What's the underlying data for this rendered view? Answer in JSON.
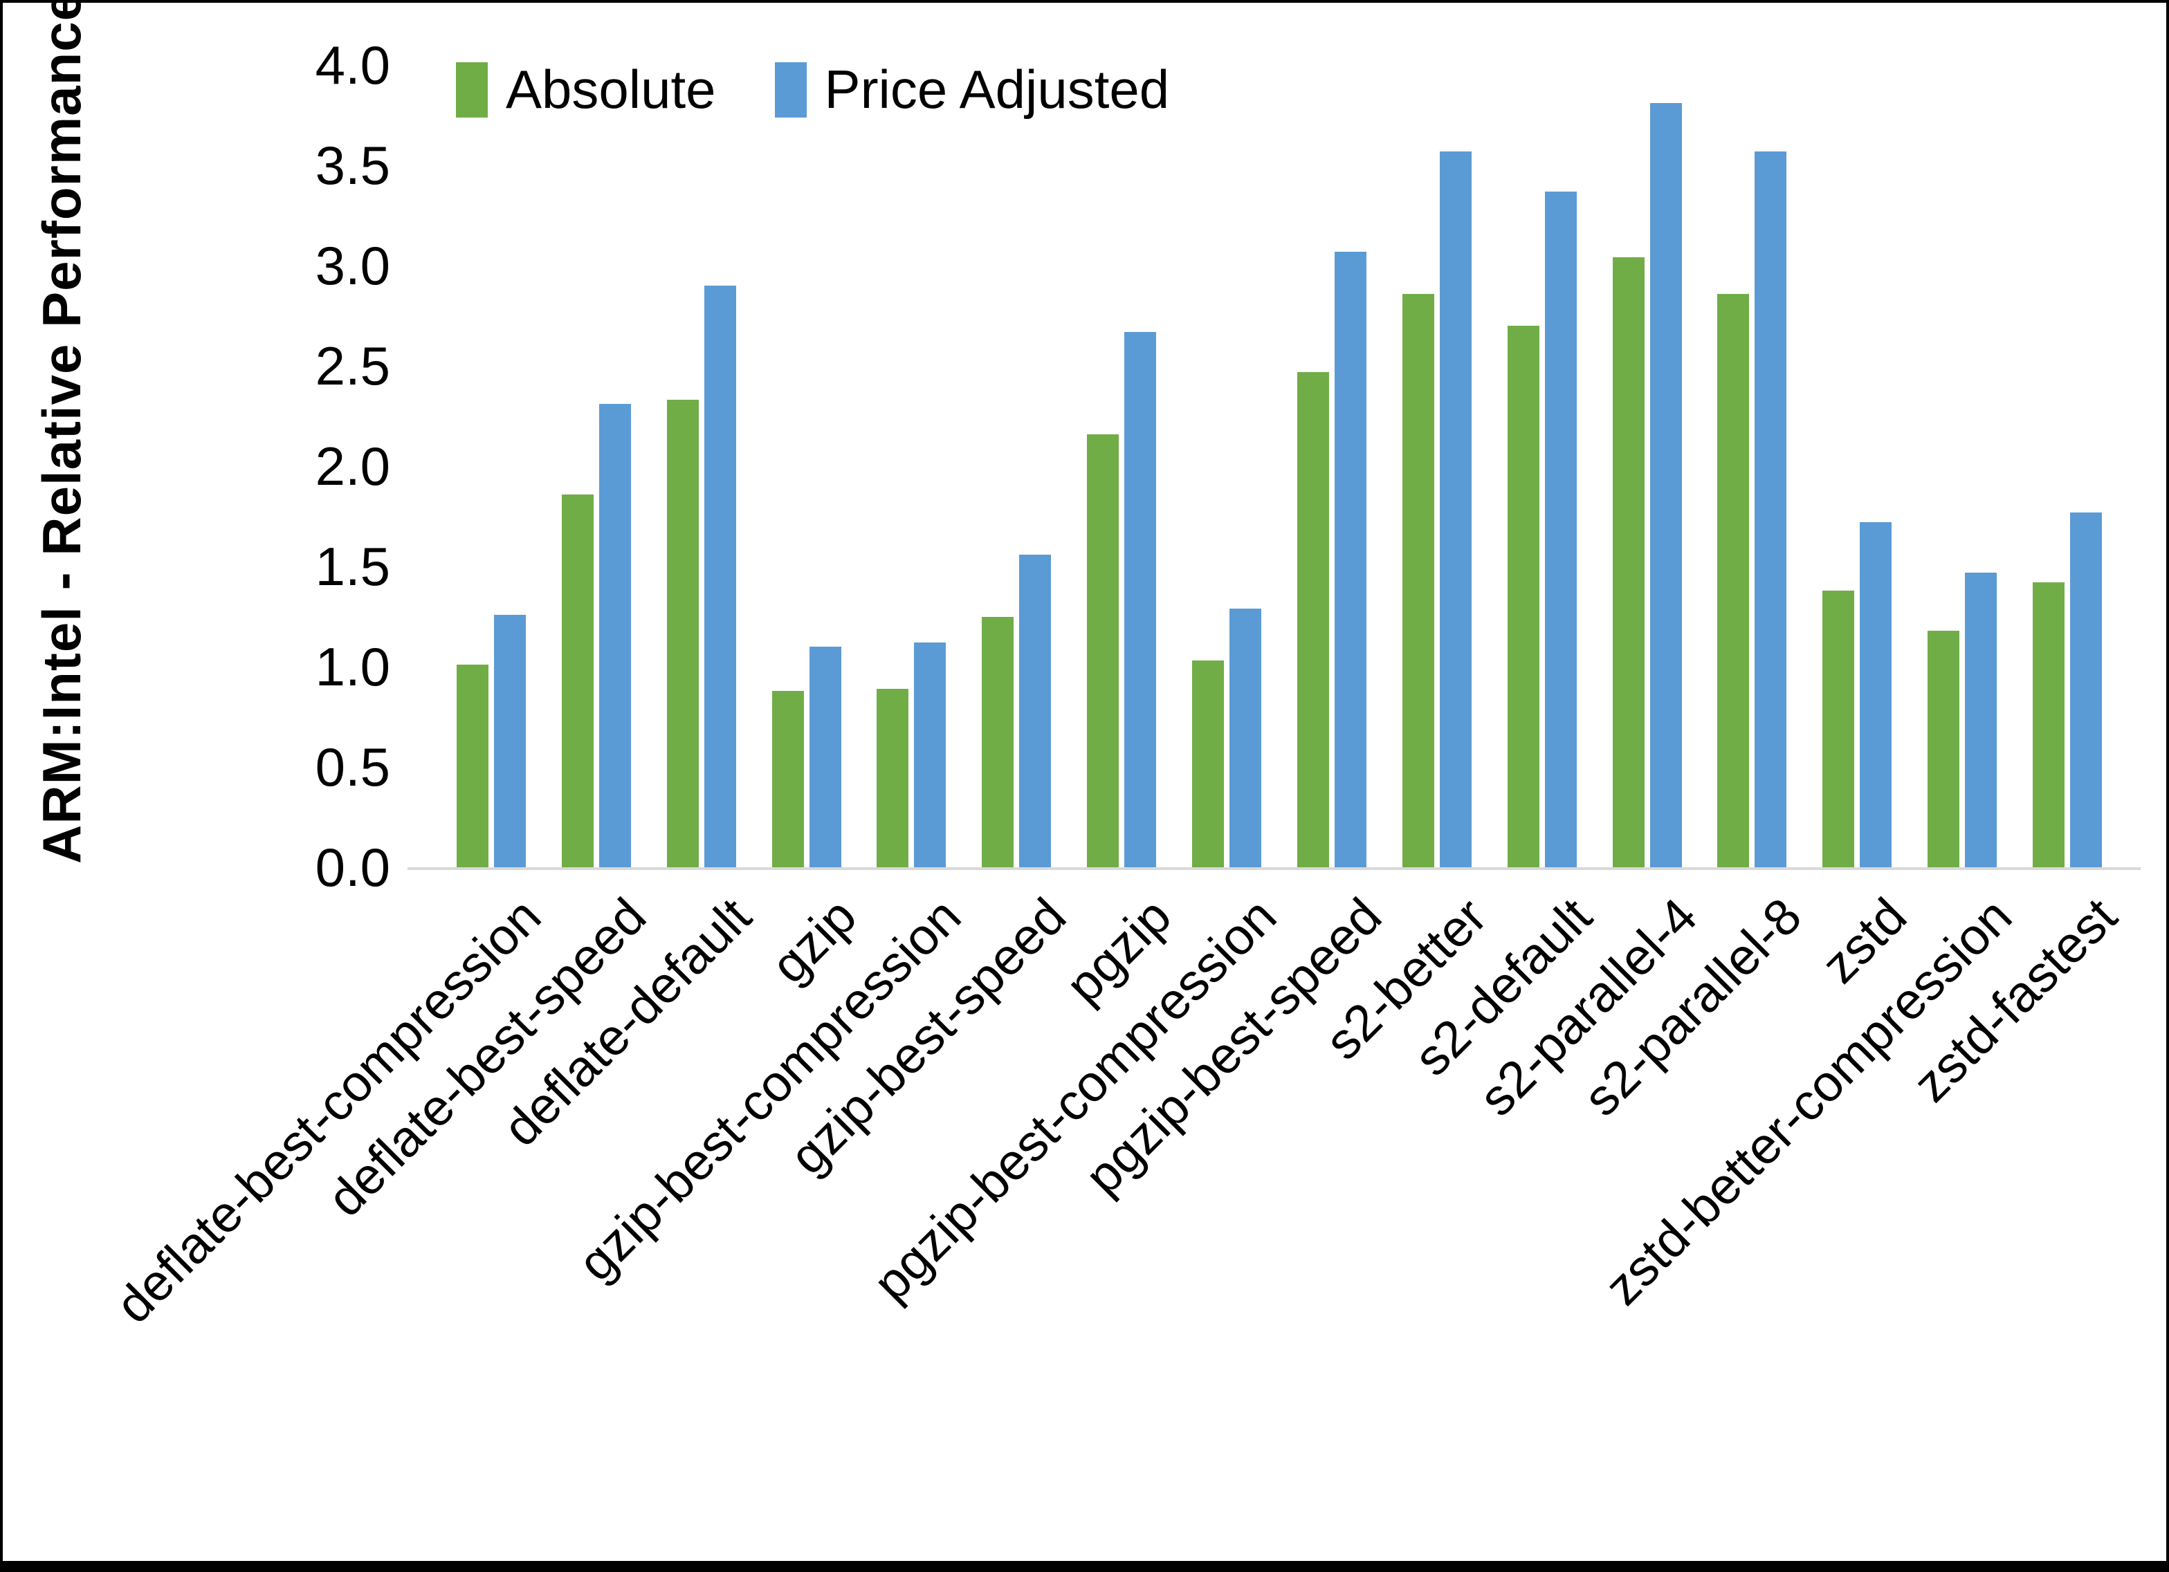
{
  "figure": {
    "y_axis_title": "ARM:Intel - Relative Performance"
  },
  "legend": {
    "items": [
      {
        "label": "Absolute",
        "color": "#70AD47"
      },
      {
        "label": "Price Adjusted",
        "color": "#5B9BD5"
      }
    ]
  },
  "chart_data": {
    "type": "bar",
    "title": "",
    "xlabel": "",
    "ylabel": "ARM:Intel - Relative Performance",
    "ylim": [
      0.0,
      4.0
    ],
    "ytick_step": 0.5,
    "ytick_labels": [
      "0.0",
      "0.5",
      "1.0",
      "1.5",
      "2.0",
      "2.5",
      "3.0",
      "3.5",
      "4.0"
    ],
    "grid": false,
    "legend_position": "top-center",
    "axis_line_color": "#D9D9D9",
    "categories": [
      "deflate-best-compression",
      "deflate-best-speed",
      "deflate-default",
      "gzip",
      "gzip-best-compression",
      "gzip-best-speed",
      "pgzip",
      "pgzip-best-compression",
      "pgzip-best-speed",
      "s2-better",
      "s2-default",
      "s2-parallel-4",
      "s2-parallel-8",
      "zstd",
      "zstd-better-compression",
      "zstd-fastest"
    ],
    "series": [
      {
        "name": "Absolute",
        "color": "#70AD47",
        "values": [
          1.01,
          1.86,
          2.33,
          0.88,
          0.89,
          1.25,
          2.16,
          1.03,
          2.47,
          2.86,
          2.7,
          3.04,
          2.86,
          1.38,
          1.18,
          1.42
        ]
      },
      {
        "name": "Price Adjusted",
        "color": "#5B9BD5",
        "values": [
          1.26,
          2.31,
          2.9,
          1.1,
          1.12,
          1.56,
          2.67,
          1.29,
          3.07,
          3.57,
          3.37,
          3.81,
          3.57,
          1.72,
          1.47,
          1.77
        ]
      }
    ]
  }
}
